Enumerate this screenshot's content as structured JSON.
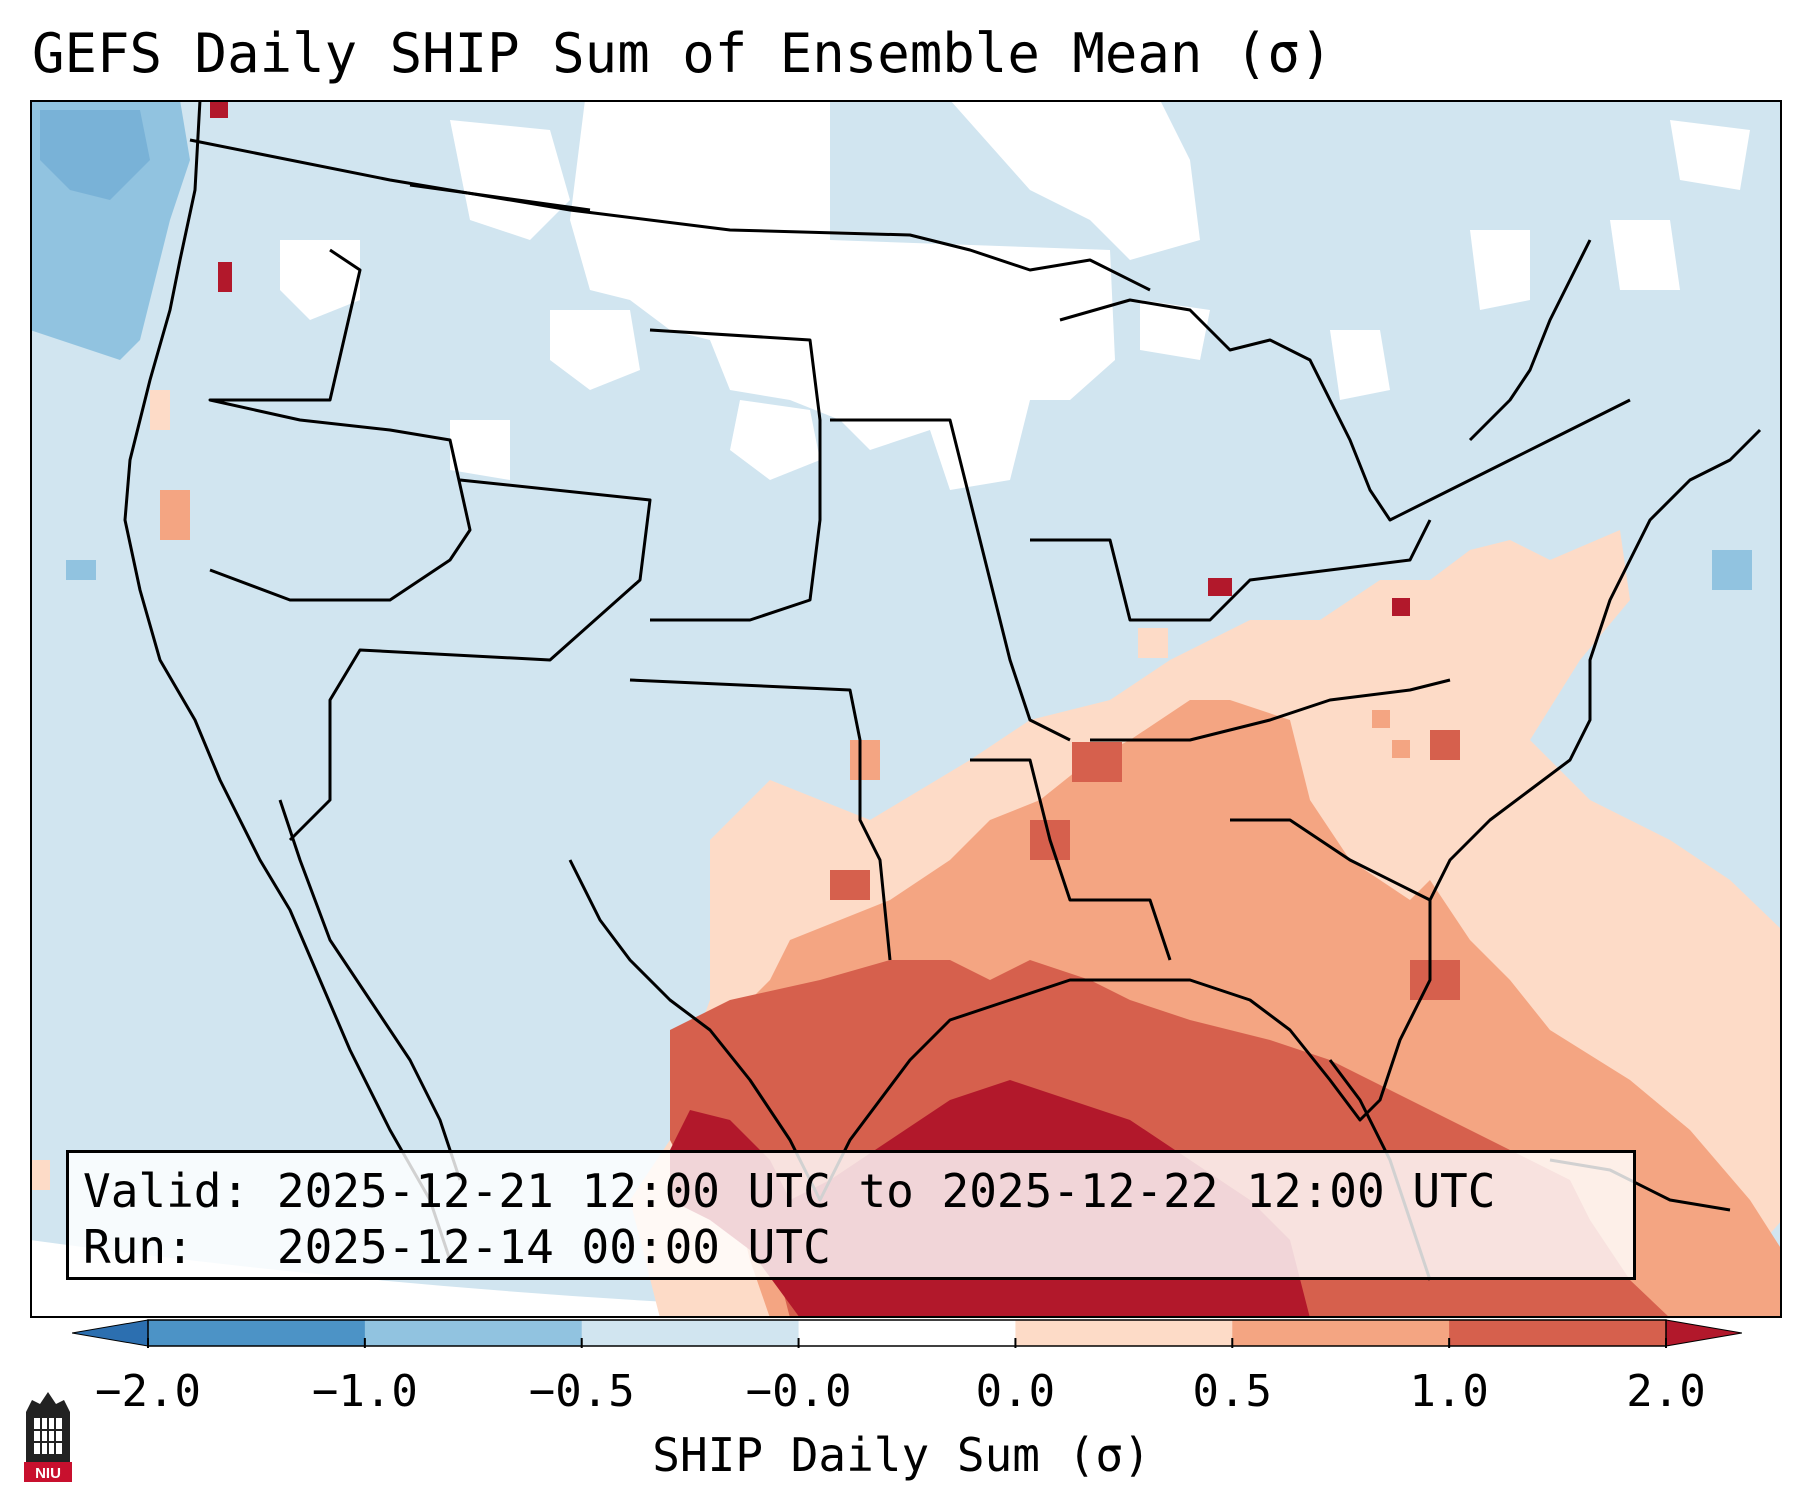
{
  "title": "GEFS Daily SHIP Sum of Ensemble Mean (σ)",
  "info": {
    "valid_label": "Valid:",
    "valid_value": "2025-12-21 12:00 UTC to 2025-12-22 12:00 UTC",
    "run_label": "Run:",
    "run_value": "2025-12-14 00:00 UTC"
  },
  "colorbar": {
    "title": "SHIP Daily Sum (σ)",
    "ticks": [
      "−2.0",
      "−1.0",
      "−0.5",
      "−0.0",
      "0.0",
      "0.5",
      "1.0",
      "2.0"
    ],
    "bins": [
      {
        "range": "< −2.0",
        "color": "#2c6fb0"
      },
      {
        "range": "−2.0 to −1.0",
        "color": "#4c93c6"
      },
      {
        "range": "−1.0 to −0.5",
        "color": "#91c3e0"
      },
      {
        "range": "−0.5 to −0.0",
        "color": "#d1e5f0"
      },
      {
        "range": "−0.0 to 0.0",
        "color": "#ffffff"
      },
      {
        "range": "0.0 to 0.5",
        "color": "#fddbc7"
      },
      {
        "range": "0.5 to 1.0",
        "color": "#f4a582"
      },
      {
        "range": "1.0 to 2.0",
        "color": "#d6604d"
      },
      {
        "range": "> 2.0",
        "color": "#b2182b"
      }
    ]
  },
  "logo": {
    "text": "NIU",
    "color": "#c8102e"
  }
}
